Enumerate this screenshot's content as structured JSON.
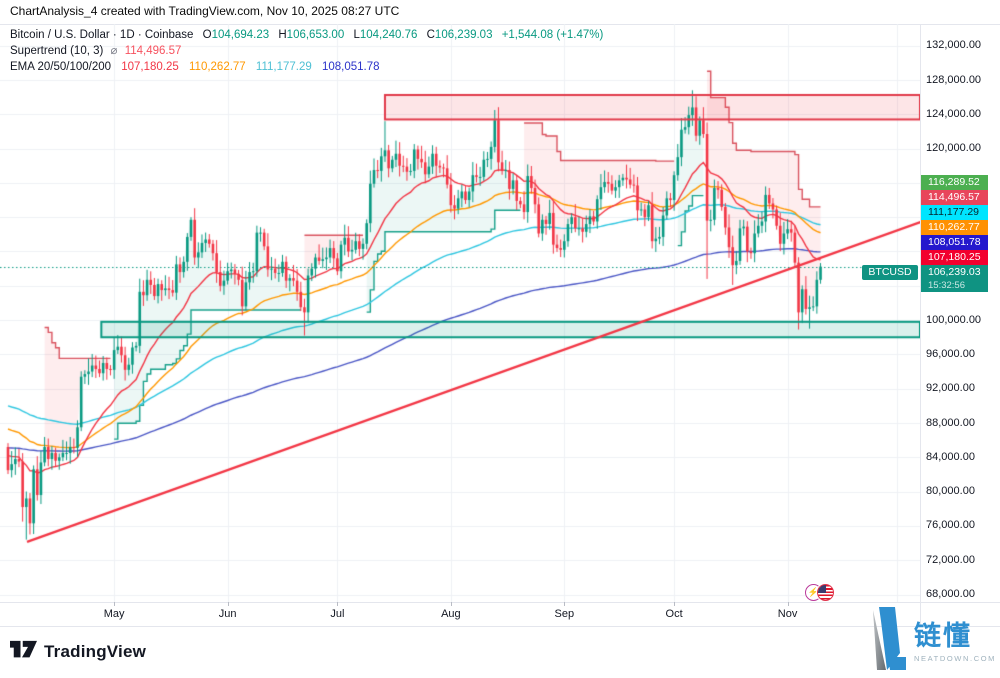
{
  "title": "ChartAnalysis_4 created with TradingView.com, Nov 10, 2025 08:27 UTC",
  "legend": {
    "symbol_line": "Bitcoin / U.S. Dollar · 1D · Coinbase",
    "ohlc": [
      {
        "k": "O",
        "v": "104,694.23"
      },
      {
        "k": "H",
        "v": "106,653.00"
      },
      {
        "k": "L",
        "v": "104,240.76"
      },
      {
        "k": "C",
        "v": "106,239.03"
      }
    ],
    "change": "+1,544.08 (+1.47%)",
    "supertrend": {
      "name": "Supertrend (10, 3)",
      "marker": "⌀",
      "value": "114,496.57"
    },
    "ema": {
      "name": "EMA 20/50/100/200",
      "values": [
        "107,180.25",
        "110,262.77",
        "111,177.29",
        "108,051.78"
      ]
    }
  },
  "price_axis": {
    "ticks": [
      {
        "label": "132,000.00",
        "price": 132000
      },
      {
        "label": "128,000.00",
        "price": 128000
      },
      {
        "label": "124,000.00",
        "price": 124000
      },
      {
        "label": "120,000.00",
        "price": 120000
      },
      {
        "label": "116,000.00",
        "price": 116000
      },
      {
        "label": "112,000.00",
        "price": 112000
      },
      {
        "label": "108,000.00",
        "price": 108000
      },
      {
        "label": "104,000.00",
        "price": 104000
      },
      {
        "label": "100,000.00",
        "price": 100000
      },
      {
        "label": "96,000.00",
        "price": 96000
      },
      {
        "label": "92,000.00",
        "price": 92000
      },
      {
        "label": "88,000.00",
        "price": 88000
      },
      {
        "label": "84,000.00",
        "price": 84000
      },
      {
        "label": "80,000.00",
        "price": 80000
      },
      {
        "label": "76,000.00",
        "price": 76000
      },
      {
        "label": "72,000.00",
        "price": 72000
      },
      {
        "label": "68,000.00",
        "price": 68000
      }
    ]
  },
  "right_labels": [
    {
      "text": "116,289.52",
      "price": 116289.52,
      "bg": "#4caf50",
      "fg": "#ffffff"
    },
    {
      "text": "114,496.57",
      "price": 114496.57,
      "bg": "#e8455b",
      "fg": "#ffffff"
    },
    {
      "text": "111,177.29",
      "price": 111177.29,
      "bg": "#00e5ff",
      "fg": "#05262e"
    },
    {
      "text": "110,262.77",
      "price": 110262.77,
      "bg": "#ff9102",
      "fg": "#ffffff"
    },
    {
      "text": "108,051.78",
      "price": 108051.78,
      "bg": "#2418cd",
      "fg": "#ffffff"
    },
    {
      "text": "107,180.25",
      "price": 107180.25,
      "bg": "#f2002e",
      "fg": "#ffffff"
    }
  ],
  "price_tag": {
    "symbol": "BTCUSD",
    "price_text": "106,239.03",
    "countdown": "15:32:56",
    "price": 106239.03,
    "bg": "#0f9382"
  },
  "time_axis": {
    "months": [
      {
        "label": "May",
        "day": 29
      },
      {
        "label": "Jun",
        "day": 60
      },
      {
        "label": "Jul",
        "day": 90
      },
      {
        "label": "Aug",
        "day": 121
      },
      {
        "label": "Sep",
        "day": 152
      },
      {
        "label": "Oct",
        "day": 182
      },
      {
        "label": "Nov",
        "day": 213
      }
    ],
    "extra_gridline_days": [
      243
    ]
  },
  "chart_data": {
    "type": "candlestick",
    "symbol": "Bitcoin / U.S. Dollar",
    "interval": "1D",
    "exchange": "Coinbase",
    "unit": "USD thousands",
    "ylim": [
      68,
      134.5
    ],
    "grid": true,
    "first_open": 85.2,
    "closes": [
      82.5,
      83.2,
      83.8,
      83.5,
      78.2,
      79.2,
      76.3,
      82.6,
      79.6,
      83.4,
      85.2,
      83.8,
      84.5,
      83.6,
      84.0,
      84.5,
      84.5,
      85.2,
      85.1,
      87.5,
      93.4,
      93.7,
      94.0,
      94.7,
      94.3,
      93.8,
      95.0,
      94.3,
      94.2,
      96.5,
      96.9,
      95.9,
      94.2,
      94.8,
      96.8,
      97.0,
      103.3,
      102.9,
      104.7,
      104.1,
      102.8,
      104.2,
      103.5,
      103.7,
      103.5,
      103.2,
      106.5,
      105.6,
      106.8,
      109.7,
      111.7,
      107.3,
      107.9,
      109.0,
      109.4,
      108.9,
      107.8,
      105.6,
      104.0,
      104.6,
      105.7,
      105.9,
      105.4,
      104.7,
      101.6,
      104.4,
      105.6,
      105.7,
      110.2,
      110.2,
      108.6,
      105.9,
      106.0,
      105.5,
      105.5,
      106.8,
      104.6,
      104.9,
      104.6,
      103.3,
      101.5,
      100.9,
      105.2,
      106.0,
      107.3,
      106.9,
      107.1,
      107.3,
      108.4,
      107.2,
      105.7,
      108.8,
      109.6,
      108.0,
      108.2,
      109.2,
      108.3,
      108.9,
      111.3,
      115.9,
      117.5,
      117.4,
      119.1,
      119.8,
      117.7,
      118.7,
      119.4,
      118.0,
      117.9,
      117.3,
      117.4,
      119.9,
      118.8,
      118.4,
      117.0,
      117.9,
      119.4,
      118.0,
      117.8,
      117.7,
      115.8,
      113.4,
      113.0,
      114.2,
      115.0,
      114.0,
      115.0,
      116.9,
      116.7,
      116.7,
      118.7,
      118.8,
      120.2,
      123.3,
      118.4,
      117.4,
      117.5,
      115.3,
      116.3,
      113.9,
      113.5,
      112.6,
      116.8,
      115.4,
      113.5,
      110.1,
      111.7,
      111.2,
      112.5,
      108.8,
      108.4,
      108.2,
      109.2,
      111.2,
      112.0,
      110.7,
      110.7,
      110.3,
      111.2,
      112.1,
      111.5,
      114.1,
      115.5,
      116.1,
      115.9,
      115.1,
      115.5,
      116.3,
      116.6,
      116.4,
      115.8,
      115.7,
      112.8,
      112.9,
      112.0,
      113.4,
      109.2,
      109.5,
      109.7,
      112.2,
      114.2,
      114.0,
      116.9,
      119.0,
      122.2,
      122.5,
      123.9,
      124.8,
      121.5,
      123.3,
      121.7,
      111.6,
      111.7,
      115.4,
      115.2,
      113.2,
      110.8,
      108.5,
      106.4,
      106.9,
      110.7,
      110.9,
      108.0,
      107.8,
      110.1,
      111.0,
      111.5,
      114.6,
      113.6,
      112.9,
      111.0,
      108.9,
      110.1,
      110.6,
      110.2,
      106.7,
      100.9,
      103.6,
      101.3,
      101.5,
      101.6,
      104.7,
      106.239
    ],
    "wick_overrides": [
      {
        "i": 4,
        "l": 76.5
      },
      {
        "i": 5,
        "l": 74.4
      },
      {
        "i": 6,
        "l": 75.0
      },
      {
        "i": 50,
        "h": 112.0
      },
      {
        "i": 81,
        "l": 98.2
      },
      {
        "i": 103,
        "h": 123.2
      },
      {
        "i": 133,
        "h": 124.5
      },
      {
        "i": 152,
        "h": 110.0,
        "l": 107.3
      },
      {
        "i": 187,
        "h": 126.8
      },
      {
        "i": 188,
        "h": 126.1
      },
      {
        "i": 191,
        "l": 104.8
      },
      {
        "i": 198,
        "l": 104.1
      },
      {
        "i": 216,
        "l": 98.9
      },
      {
        "i": 219,
        "l": 99.0
      },
      {
        "i": 222,
        "h": 106.653,
        "l": 104.241
      }
    ],
    "last_candle": {
      "o": 104.69423,
      "h": 106.653,
      "l": 104.24076,
      "c": 106.23903
    },
    "up_color": "#089981",
    "down_color": "#f23645",
    "emas": [
      {
        "period": 200,
        "color": "#4a56c5",
        "seed": 85.1
      },
      {
        "period": 100,
        "color": "#2fc6e0",
        "seed": 90.0
      },
      {
        "period": 50,
        "color": "#ff9800",
        "seed": 87.3
      },
      {
        "period": 20,
        "color": "#f23645",
        "seed": 84.2
      }
    ],
    "supertrend": {
      "period": 10,
      "multiplier": 3,
      "up_line": "#16a08a",
      "down_line": "#d9535f",
      "up_fill": "rgba(8,153,129,0.08)",
      "down_fill": "rgba(242,54,69,0.09)"
    },
    "zones": [
      {
        "name": "resistance",
        "from_day": 103,
        "to_day": 250,
        "price_top": 126.25,
        "price_bottom": 123.4,
        "fill": "rgba(242,54,69,0.13)",
        "border": "#e13a4a"
      },
      {
        "name": "support",
        "from_day": 25.5,
        "to_day": 250,
        "price_top": 99.8,
        "price_bottom": 98.0,
        "fill": "rgba(8,153,129,0.15)",
        "border": "#089981"
      }
    ],
    "trendline": {
      "from_day": 5.2,
      "from_price": 74.13,
      "to_day": 249.3,
      "to_price": 111.44,
      "color": "#f23645"
    },
    "current_price_line": {
      "price": 106.239,
      "color": "#089981"
    }
  },
  "watermark_pair": {
    "base_glyph": "⚡"
  },
  "footer": {
    "brand": "TradingView",
    "watermark_cn": "链懂",
    "watermark_site": "NEATDOWN.COM"
  }
}
